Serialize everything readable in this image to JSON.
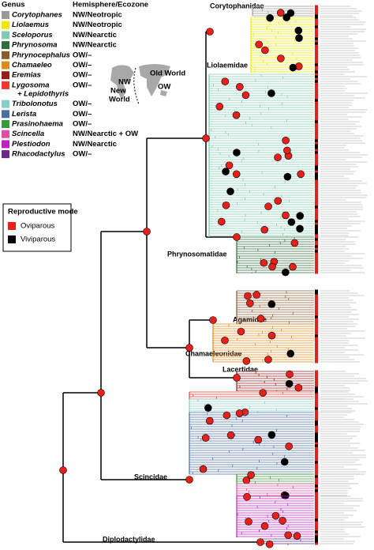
{
  "legend": {
    "headers": [
      "Genus",
      "Hemisphere/Ecozone"
    ],
    "rows": [
      {
        "genus": "Corytophanes",
        "region": "NW/Neotropic",
        "color": "#9a9a9a"
      },
      {
        "genus": "Liolaemus",
        "region": "NW/Neotropic",
        "color": "#f2e600"
      },
      {
        "genus": "Sceloporus",
        "region": "NW/Nearctic",
        "color": "#7fcab0"
      },
      {
        "genus": "Phrynosoma",
        "region": "NW/Nearctic",
        "color": "#2f6e3a"
      },
      {
        "genus": "Phrynocephalus",
        "region": "OW/–",
        "color": "#8b5a2b"
      },
      {
        "genus": "Chamaeleo",
        "region": "OW/–",
        "color": "#e08a1e"
      },
      {
        "genus": "Eremias",
        "region": "OW/–",
        "color": "#9b1b1b"
      },
      {
        "genus": "Lygosoma",
        "genus2": "+ Lepidothyris",
        "region": "OW/–",
        "color": "#ec3a2e"
      },
      {
        "genus": "Tribolonotus",
        "region": "OW/–",
        "color": "#86cfc4"
      },
      {
        "genus": "Lerista",
        "region": "OW/–",
        "color": "#4a6fa5"
      },
      {
        "genus": "Prasinohaema",
        "region": "OW/–",
        "color": "#3a9a3a"
      },
      {
        "genus": "Scincella",
        "region": "NW/Nearctic + OW",
        "color": "#e24aa6"
      },
      {
        "genus": "Plestiodon",
        "region": "NW/Nearctic",
        "color": "#c020c0"
      },
      {
        "genus": "Rhacodactylus",
        "region": "OW/–",
        "color": "#6a2a8a"
      }
    ]
  },
  "reproductive_mode": {
    "title": "Reproductive mode",
    "items": [
      {
        "label": "Oviparous",
        "color": "#e8201a"
      },
      {
        "label": "Viviparous",
        "color": "#000000"
      }
    ]
  },
  "map": {
    "labels": [
      "NW",
      "New",
      "World",
      "Old World",
      "OW"
    ]
  },
  "clades": [
    "Corytophanidae",
    "Liolaemidae",
    "Phrynosomatidae",
    "Agamidae",
    "Chamaeleonidae",
    "Lacertidae",
    "Scincidae",
    "Diplodactylidae"
  ]
}
